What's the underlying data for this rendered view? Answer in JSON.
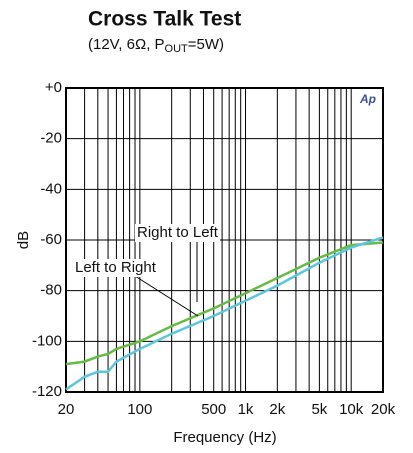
{
  "chart_data": {
    "type": "line",
    "title": "Cross Talk Test",
    "subtitle": [
      "(12V, 6Ω, P",
      "OUT",
      "=5W)"
    ],
    "xlabel": "Frequency (Hz)",
    "ylabel": "dB",
    "logo": "Ap",
    "xscale": "log",
    "x": [
      20,
      30,
      40,
      50,
      60,
      100,
      200,
      500,
      1000,
      2000,
      5000,
      10000,
      20000
    ],
    "series": [
      {
        "name": "Right to Left",
        "color": "#66bb44",
        "values": [
          -109,
          -108,
          -106,
          -105,
          -103,
          -100,
          -94,
          -87,
          -81,
          -75,
          -67,
          -62,
          -61
        ]
      },
      {
        "name": "Left to Right",
        "color": "#5cc6dc",
        "values": [
          -119,
          -114,
          -112,
          -112,
          -108,
          -103,
          -97,
          -90,
          -84,
          -78,
          -69,
          -63,
          -59
        ]
      }
    ],
    "xlim": [
      20,
      20000
    ],
    "ylim": [
      -120,
      0
    ],
    "xticks": [
      20,
      100,
      500,
      {
        "value": 1000,
        "label": "1k"
      },
      {
        "value": 2000,
        "label": "2k"
      },
      {
        "value": 5000,
        "label": "5k"
      },
      {
        "value": 10000,
        "label": "10k"
      },
      {
        "value": 20000,
        "label": "20k"
      }
    ],
    "xgrid": [
      20,
      30,
      40,
      50,
      60,
      70,
      80,
      90,
      100,
      200,
      300,
      400,
      500,
      600,
      700,
      800,
      900,
      1000,
      2000,
      3000,
      4000,
      5000,
      6000,
      7000,
      8000,
      9000,
      10000,
      20000
    ],
    "yticks": [
      {
        "value": 0,
        "label": "+0"
      },
      -20,
      -40,
      -60,
      -80,
      -100,
      -120
    ],
    "grid": true
  }
}
